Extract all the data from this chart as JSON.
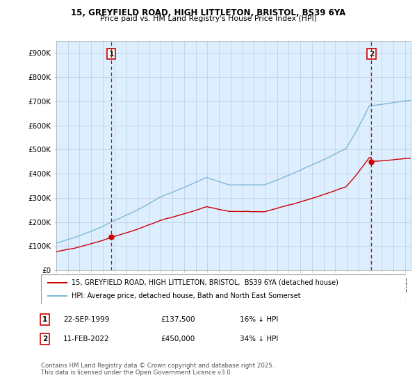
{
  "title1": "15, GREYFIELD ROAD, HIGH LITTLETON, BRISTOL, BS39 6YA",
  "title2": "Price paid vs. HM Land Registry's House Price Index (HPI)",
  "ylabel_ticks": [
    "£0",
    "£100K",
    "£200K",
    "£300K",
    "£400K",
    "£500K",
    "£600K",
    "£700K",
    "£800K",
    "£900K"
  ],
  "ytick_values": [
    0,
    100000,
    200000,
    300000,
    400000,
    500000,
    600000,
    700000,
    800000,
    900000
  ],
  "ylim": [
    0,
    950000
  ],
  "xlim_start": 1995.0,
  "xlim_end": 2025.5,
  "hpi_color": "#7db8d8",
  "price_color": "#cc0000",
  "dashed_color": "#cc0000",
  "chart_bg": "#ddeeff",
  "point1_year": 1999.73,
  "point1_price": 137500,
  "point2_year": 2022.12,
  "point2_price": 450000,
  "legend1": "15, GREYFIELD ROAD, HIGH LITTLETON, BRISTOL,  BS39 6YA (detached house)",
  "legend2": "HPI: Average price, detached house, Bath and North East Somerset",
  "ann1_label": "1",
  "ann1_date": "22-SEP-1999",
  "ann1_price": "£137,500",
  "ann1_pct": "16% ↓ HPI",
  "ann2_label": "2",
  "ann2_date": "11-FEB-2022",
  "ann2_price": "£450,000",
  "ann2_pct": "34% ↓ HPI",
  "footer": "Contains HM Land Registry data © Crown copyright and database right 2025.\nThis data is licensed under the Open Government Licence v3.0.",
  "background_color": "#ffffff",
  "grid_color": "#bbccdd"
}
